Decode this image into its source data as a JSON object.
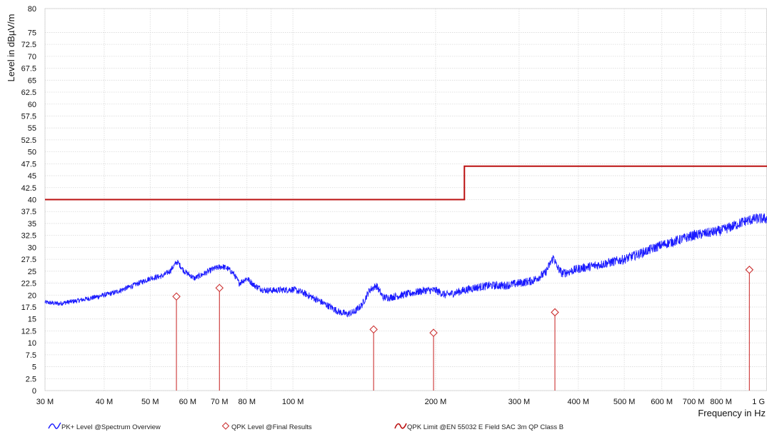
{
  "chart_data": {
    "type": "line",
    "xlabel": "Frequency in Hz",
    "ylabel": "Level in dBµV/m",
    "x_scale": "log",
    "xlim": [
      30000000,
      1000000000
    ],
    "ylim": [
      0,
      80
    ],
    "grid": true,
    "y_ticks": [
      {
        "v": 0,
        "label": "0"
      },
      {
        "v": 2.5,
        "label": "2.5"
      },
      {
        "v": 5,
        "label": "5"
      },
      {
        "v": 7.5,
        "label": "7.5"
      },
      {
        "v": 10,
        "label": "10"
      },
      {
        "v": 12.5,
        "label": "12.5"
      },
      {
        "v": 15,
        "label": "15"
      },
      {
        "v": 17.5,
        "label": "17.5"
      },
      {
        "v": 20,
        "label": "20"
      },
      {
        "v": 22.5,
        "label": "22.5"
      },
      {
        "v": 25,
        "label": "25"
      },
      {
        "v": 27.5,
        "label": "27.5"
      },
      {
        "v": 30,
        "label": "30"
      },
      {
        "v": 32.5,
        "label": "32.5"
      },
      {
        "v": 35,
        "label": "35"
      },
      {
        "v": 37.5,
        "label": "37.5"
      },
      {
        "v": 40,
        "label": "40"
      },
      {
        "v": 42.5,
        "label": "42.5"
      },
      {
        "v": 45,
        "label": "45"
      },
      {
        "v": 47.5,
        "label": "47.5"
      },
      {
        "v": 50,
        "label": "50"
      },
      {
        "v": 52.5,
        "label": "52.5"
      },
      {
        "v": 55,
        "label": "55"
      },
      {
        "v": 57.5,
        "label": "57.5"
      },
      {
        "v": 60,
        "label": "60"
      },
      {
        "v": 62.5,
        "label": "62.5"
      },
      {
        "v": 65,
        "label": "65"
      },
      {
        "v": 67.5,
        "label": "67.5"
      },
      {
        "v": 70,
        "label": "70"
      },
      {
        "v": 72.5,
        "label": "72.5"
      },
      {
        "v": 75,
        "label": "75"
      },
      {
        "v": 80,
        "label": "80"
      }
    ],
    "x_ticks": [
      {
        "v": 30000000,
        "label": "30 M"
      },
      {
        "v": 40000000,
        "label": "40 M"
      },
      {
        "v": 50000000,
        "label": "50 M"
      },
      {
        "v": 60000000,
        "label": "60 M"
      },
      {
        "v": 70000000,
        "label": "70 M"
      },
      {
        "v": 80000000,
        "label": "80 M"
      },
      {
        "v": 100000000,
        "label": "100 M"
      },
      {
        "v": 200000000,
        "label": "200 M"
      },
      {
        "v": 300000000,
        "label": "300 M"
      },
      {
        "v": 400000000,
        "label": "400 M"
      },
      {
        "v": 500000000,
        "label": "500 M"
      },
      {
        "v": 600000000,
        "label": "600 M"
      },
      {
        "v": 700000000,
        "label": "700 M"
      },
      {
        "v": 800000000,
        "label": "800 M"
      },
      {
        "v": 1000000000,
        "label": "1 G"
      }
    ],
    "series": [
      {
        "name": "PK+ Level @Spectrum Overview",
        "type": "line",
        "color": "#1a1aff",
        "noise_amplitude": 0.8,
        "x": [
          30000000,
          32000000,
          35000000,
          38000000,
          42000000,
          46000000,
          50000000,
          53000000,
          55000000,
          57000000,
          59000000,
          62000000,
          65000000,
          68000000,
          71000000,
          73000000,
          75000000,
          77000000,
          80000000,
          83000000,
          87000000,
          92000000,
          100000000,
          105000000,
          110000000,
          115000000,
          120000000,
          125000000,
          130000000,
          135000000,
          140000000,
          145000000,
          150000000,
          155000000,
          160000000,
          170000000,
          180000000,
          190000000,
          200000000,
          210000000,
          220000000,
          240000000,
          260000000,
          280000000,
          300000000,
          320000000,
          340000000,
          355000000,
          360000000,
          370000000,
          400000000,
          450000000,
          500000000,
          550000000,
          600000000,
          650000000,
          700000000,
          750000000,
          800000000,
          850000000,
          900000000,
          950000000,
          1000000000
        ],
        "y": [
          18.5,
          18.2,
          18.8,
          19.5,
          20.5,
          22,
          23.5,
          24,
          25,
          27,
          25,
          23.5,
          24.5,
          25.5,
          26,
          25.5,
          24.5,
          22.5,
          23.5,
          22,
          21,
          21,
          21.2,
          20.5,
          19.5,
          18.5,
          17.5,
          16.5,
          16,
          16.5,
          18,
          21,
          22,
          19.5,
          19.5,
          20,
          20.5,
          21,
          21,
          20,
          20.5,
          21.5,
          22,
          22,
          22.5,
          23,
          24.5,
          28,
          26,
          24.5,
          25.5,
          26.5,
          27.5,
          29,
          30.5,
          31.5,
          32.5,
          33,
          33.5,
          34.5,
          35.5,
          36,
          36
        ]
      },
      {
        "name": "QPK Level @Final Results",
        "type": "stem",
        "color": "#cc3333",
        "points": [
          {
            "x": 56800000,
            "y": 19.7
          },
          {
            "x": 70000000,
            "y": 21.5
          },
          {
            "x": 148000000,
            "y": 12.8
          },
          {
            "x": 198000000,
            "y": 12.1
          },
          {
            "x": 357000000,
            "y": 16.4
          },
          {
            "x": 918000000,
            "y": 25.3
          }
        ]
      },
      {
        "name": "QPK Limit @EN 55032 E Field SAC 3m QP Class B",
        "type": "step",
        "color": "#bb1111",
        "x": [
          30000000,
          230000000,
          230000000,
          1000000000
        ],
        "y": [
          40,
          40,
          47,
          47
        ]
      }
    ],
    "legend_position": "bottom"
  }
}
